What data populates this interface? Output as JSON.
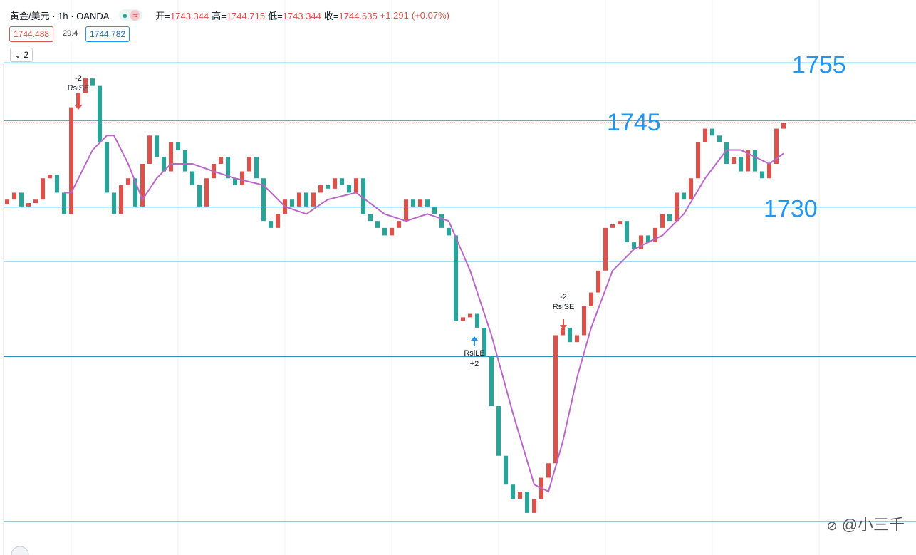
{
  "header": {
    "symbol": "黄金/美元 · 1h · OANDA",
    "ohlc": [
      {
        "label": "开=",
        "value": 1743.344
      },
      {
        "label": "高=",
        "value": 1744.715
      },
      {
        "label": "低=",
        "value": 1743.344
      },
      {
        "label": "收=",
        "value": 1744.635
      }
    ],
    "change": "+1.291",
    "change_pct": "(+0.07%)",
    "bid": 1744.488,
    "spread": 29.4,
    "ask": 1744.782,
    "indicator_count": 2
  },
  "watermark": "@小三千",
  "chart_data": {
    "type": "candlestick",
    "ylim": [
      1669.7,
      1765.9
    ],
    "first_open": 1730.5,
    "closes": [
      1731.3,
      1732.5,
      1730.1,
      1730.7,
      1731.3,
      1735.0,
      1735.6,
      1732.5,
      1728.8,
      1747.3,
      1749.8,
      1752.3,
      1751.0,
      1741.2,
      1732.5,
      1728.8,
      1733.8,
      1735.0,
      1730.1,
      1737.5,
      1742.4,
      1738.7,
      1736.2,
      1741.2,
      1739.9,
      1736.2,
      1733.8,
      1730.1,
      1735.0,
      1737.5,
      1738.7,
      1735.0,
      1733.8,
      1736.2,
      1738.7,
      1735.0,
      1727.6,
      1726.4,
      1728.8,
      1731.3,
      1730.1,
      1732.5,
      1730.1,
      1732.5,
      1733.8,
      1733.2,
      1735.0,
      1733.8,
      1732.5,
      1735.0,
      1728.8,
      1727.6,
      1726.4,
      1725.1,
      1726.4,
      1727.6,
      1731.3,
      1730.1,
      1731.3,
      1730.1,
      1728.8,
      1726.4,
      1725.1,
      1710.3,
      1710.9,
      1711.5,
      1709.1,
      1704.1,
      1695.5,
      1686.9,
      1681.9,
      1679.4,
      1680.7,
      1677.0,
      1679.4,
      1683.1,
      1685.6,
      1707.8,
      1709.1,
      1706.6,
      1707.8,
      1712.8,
      1715.2,
      1719.0,
      1726.4,
      1727.0,
      1727.6,
      1723.9,
      1722.7,
      1725.1,
      1723.9,
      1726.4,
      1728.8,
      1727.6,
      1732.5,
      1731.3,
      1735.0,
      1741.2,
      1743.6,
      1742.4,
      1741.2,
      1737.5,
      1738.7,
      1736.2,
      1739.9,
      1736.2,
      1735.0,
      1737.5,
      1743.6,
      1744.6
    ],
    "up_color": "#e0504a",
    "down_color": "#26a69a",
    "ma": {
      "color": "#b967c7",
      "x": [
        8,
        9,
        12,
        14,
        15,
        17,
        19,
        21,
        23,
        26,
        29,
        32,
        36,
        39,
        42,
        45,
        49,
        53,
        56,
        59,
        62,
        65,
        68,
        71,
        74,
        76,
        78,
        80,
        82,
        85,
        88,
        92,
        95,
        98,
        101,
        103,
        105,
        107,
        109
      ],
      "values": [
        1732.5,
        1732.5,
        1739.9,
        1742.4,
        1742.4,
        1737.5,
        1731.3,
        1735.0,
        1737.5,
        1737.5,
        1736.2,
        1735.0,
        1733.8,
        1730.1,
        1728.8,
        1731.3,
        1732.5,
        1728.8,
        1727.6,
        1728.8,
        1727.6,
        1719.0,
        1707.8,
        1694.3,
        1681.9,
        1680.7,
        1689.3,
        1700.4,
        1709.1,
        1719.0,
        1722.7,
        1725.1,
        1728.8,
        1735.0,
        1739.9,
        1739.9,
        1738.7,
        1737.5,
        1739.3
      ]
    },
    "labeled_levels": [
      1755,
      1745,
      1730
    ],
    "other_levels": [
      1720.6,
      1704.1,
      1675.5
    ],
    "level_color": "#2a8cbc",
    "level_label_color": "#2196f3",
    "current_price_color": "#e03c3c",
    "signals": [
      {
        "count": -2,
        "label": "RsiSE"
      },
      {
        "label": "RsiLE",
        "count": "+2"
      },
      {
        "count": -2,
        "label": "RsiSE"
      }
    ]
  }
}
